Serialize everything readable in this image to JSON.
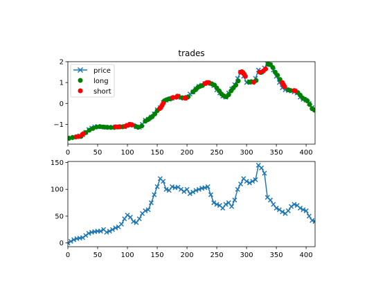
{
  "chart_data": [
    {
      "type": "line",
      "title": "trades",
      "xlabel": "",
      "ylabel": "",
      "xlim": [
        0,
        415
      ],
      "ylim": [
        -1.95,
        2.0
      ],
      "xticks": [
        0,
        50,
        100,
        150,
        200,
        250,
        300,
        350,
        400
      ],
      "yticks": [
        -1,
        0,
        1,
        2
      ],
      "ytick_labels": [
        "−1",
        "0",
        "1",
        "2"
      ],
      "grid": false,
      "legend": {
        "position": "top-left",
        "entries": [
          "price",
          "long",
          "short"
        ]
      },
      "series": [
        {
          "name": "price",
          "style": "line-x-marker",
          "color": "#1f77b4",
          "x": [
            0,
            5,
            10,
            15,
            20,
            25,
            30,
            35,
            40,
            45,
            50,
            55,
            60,
            65,
            70,
            75,
            80,
            85,
            90,
            95,
            100,
            105,
            110,
            115,
            120,
            125,
            130,
            135,
            140,
            145,
            150,
            155,
            160,
            165,
            170,
            175,
            180,
            185,
            190,
            195,
            200,
            205,
            210,
            215,
            220,
            225,
            230,
            235,
            240,
            245,
            250,
            255,
            260,
            265,
            270,
            275,
            280,
            285,
            290,
            295,
            300,
            305,
            310,
            315,
            320,
            325,
            330,
            335,
            340,
            345,
            350,
            355,
            360,
            365,
            370,
            375,
            380,
            385,
            390,
            395,
            400,
            405,
            410,
            415
          ],
          "y": [
            -1.68,
            -1.65,
            -1.62,
            -1.6,
            -1.55,
            -1.5,
            -1.38,
            -1.25,
            -1.18,
            -1.12,
            -1.1,
            -1.12,
            -1.13,
            -1.15,
            -1.15,
            -1.13,
            -1.12,
            -1.13,
            -1.1,
            -1.12,
            -1.05,
            -1.0,
            -1.05,
            -1.12,
            -1.15,
            -1.0,
            -0.8,
            -0.75,
            -0.65,
            -0.5,
            -0.3,
            -0.2,
            0.05,
            0.15,
            0.2,
            0.25,
            0.3,
            0.35,
            0.28,
            0.25,
            0.3,
            0.45,
            0.55,
            0.7,
            0.82,
            0.88,
            0.95,
            1.0,
            0.95,
            0.85,
            0.65,
            0.5,
            0.35,
            0.3,
            0.5,
            0.7,
            0.9,
            1.2,
            1.5,
            1.3,
            1.0,
            1.05,
            1.0,
            1.2,
            1.6,
            1.5,
            1.7,
            1.9,
            1.85,
            1.6,
            1.3,
            1.0,
            0.75,
            0.65,
            0.62,
            0.6,
            0.55,
            0.5,
            0.3,
            0.2,
            0.15,
            0.0,
            -0.2,
            -0.3
          ]
        },
        {
          "name": "long",
          "style": "dots",
          "color": "#008000",
          "x": [
            2,
            8,
            22,
            30,
            36,
            42,
            48,
            54,
            60,
            66,
            72,
            78,
            84,
            88,
            92,
            106,
            114,
            118,
            124,
            130,
            134,
            138,
            142,
            146,
            150,
            162,
            166,
            170,
            174,
            186,
            192,
            202,
            210,
            214,
            218,
            222,
            226,
            238,
            242,
            246,
            250,
            254,
            258,
            262,
            266,
            270,
            274,
            278,
            282,
            286,
            304,
            308,
            316,
            324,
            336,
            340,
            344,
            348,
            352,
            356,
            370,
            374,
            386,
            390,
            394,
            398,
            402,
            406,
            410,
            414
          ],
          "y": [
            -1.67,
            -1.63,
            -1.58,
            -1.4,
            -1.28,
            -1.2,
            -1.13,
            -1.11,
            -1.13,
            -1.14,
            -1.15,
            -1.15,
            -1.13,
            -1.12,
            -1.12,
            -1.02,
            -1.1,
            -1.14,
            -1.08,
            -0.85,
            -0.78,
            -0.7,
            -0.62,
            -0.5,
            -0.35,
            0.12,
            0.18,
            0.22,
            0.24,
            0.33,
            0.27,
            0.32,
            0.55,
            0.65,
            0.76,
            0.82,
            0.86,
            0.98,
            0.93,
            0.88,
            0.74,
            0.6,
            0.45,
            0.36,
            0.32,
            0.42,
            0.6,
            0.75,
            0.88,
            1.08,
            1.02,
            1.04,
            1.1,
            1.48,
            1.88,
            1.86,
            1.72,
            1.5,
            1.35,
            1.15,
            0.65,
            0.62,
            0.52,
            0.4,
            0.26,
            0.2,
            0.12,
            -0.05,
            -0.25,
            -0.32
          ]
        },
        {
          "name": "short",
          "style": "dots",
          "color": "#ff0000",
          "x": [
            14,
            18,
            24,
            26,
            80,
            86,
            96,
            100,
            104,
            108,
            154,
            156,
            158,
            160,
            176,
            182,
            184,
            196,
            198,
            230,
            232,
            234,
            236,
            290,
            292,
            294,
            296,
            298,
            312,
            322,
            328,
            332,
            360,
            362,
            364,
            380,
            382
          ],
          "y": [
            -1.6,
            -1.58,
            -1.5,
            -1.45,
            -1.12,
            -1.12,
            -1.1,
            -1.05,
            -1.0,
            -1.03,
            -0.25,
            -0.2,
            -0.1,
            0.0,
            0.28,
            0.3,
            0.35,
            0.26,
            0.25,
            0.95,
            0.97,
            1.0,
            1.0,
            1.5,
            1.52,
            1.48,
            1.4,
            1.3,
            1.02,
            1.5,
            1.55,
            1.65,
            1.0,
            0.9,
            0.8,
            0.62,
            0.6
          ]
        }
      ]
    },
    {
      "type": "line",
      "title": "",
      "xlabel": "",
      "ylabel": "",
      "xlim": [
        0,
        415
      ],
      "ylim": [
        -7,
        152
      ],
      "xticks": [
        0,
        50,
        100,
        150,
        200,
        250,
        300,
        350,
        400
      ],
      "yticks": [
        0,
        50,
        100,
        150
      ],
      "ytick_labels": [
        "0",
        "50",
        "100",
        "150"
      ],
      "grid": false,
      "series": [
        {
          "style": "line-x-marker",
          "color": "#1f77b4",
          "x": [
            0,
            5,
            10,
            15,
            20,
            25,
            30,
            35,
            40,
            45,
            50,
            55,
            60,
            65,
            70,
            75,
            80,
            85,
            90,
            95,
            100,
            105,
            110,
            115,
            120,
            125,
            130,
            135,
            140,
            145,
            150,
            155,
            160,
            165,
            170,
            175,
            180,
            185,
            190,
            195,
            200,
            205,
            210,
            215,
            220,
            225,
            230,
            235,
            240,
            245,
            250,
            255,
            260,
            265,
            270,
            275,
            280,
            285,
            290,
            295,
            300,
            305,
            310,
            315,
            320,
            325,
            330,
            335,
            340,
            345,
            350,
            355,
            360,
            365,
            370,
            375,
            380,
            385,
            390,
            395,
            400,
            405,
            410,
            415
          ],
          "y": [
            0,
            3,
            6,
            8,
            9,
            10,
            14,
            18,
            20,
            21,
            22,
            22,
            25,
            20,
            22,
            25,
            28,
            30,
            35,
            45,
            52,
            48,
            40,
            38,
            45,
            55,
            60,
            62,
            75,
            90,
            105,
            120,
            115,
            100,
            98,
            105,
            103,
            104,
            100,
            96,
            100,
            92,
            95,
            98,
            100,
            102,
            103,
            105,
            90,
            75,
            72,
            70,
            65,
            72,
            75,
            68,
            80,
            100,
            110,
            120,
            115,
            112,
            115,
            118,
            145,
            140,
            130,
            85,
            80,
            72,
            65,
            62,
            58,
            55,
            60,
            68,
            72,
            70,
            65,
            62,
            60,
            50,
            42,
            40
          ]
        }
      ]
    }
  ]
}
